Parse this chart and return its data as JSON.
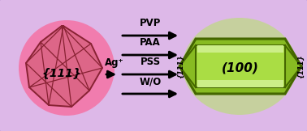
{
  "bg_color": "#ddb8e8",
  "bg_border": "#aa88cc",
  "left_glow_color": "#ff5588",
  "right_glow_color": "#aaee44",
  "ico_fill": "#dd6688",
  "ico_edge": "#882233",
  "wire_fill_outer": "#88bb22",
  "wire_fill_inner": "#aadd44",
  "wire_fill_light": "#ccee88",
  "wire_edge": "#446600",
  "label_111": "{111}",
  "label_100": "(100)",
  "label_ag": "Ag⁺",
  "arrows_labels": [
    "PVP",
    "PAA",
    "PSS",
    "W/O"
  ],
  "title_fontsize": 10,
  "arrow_fontsize": 8.5,
  "side_fontsize": 6.0,
  "figwidth": 3.78,
  "figheight": 1.62,
  "dpi": 100
}
